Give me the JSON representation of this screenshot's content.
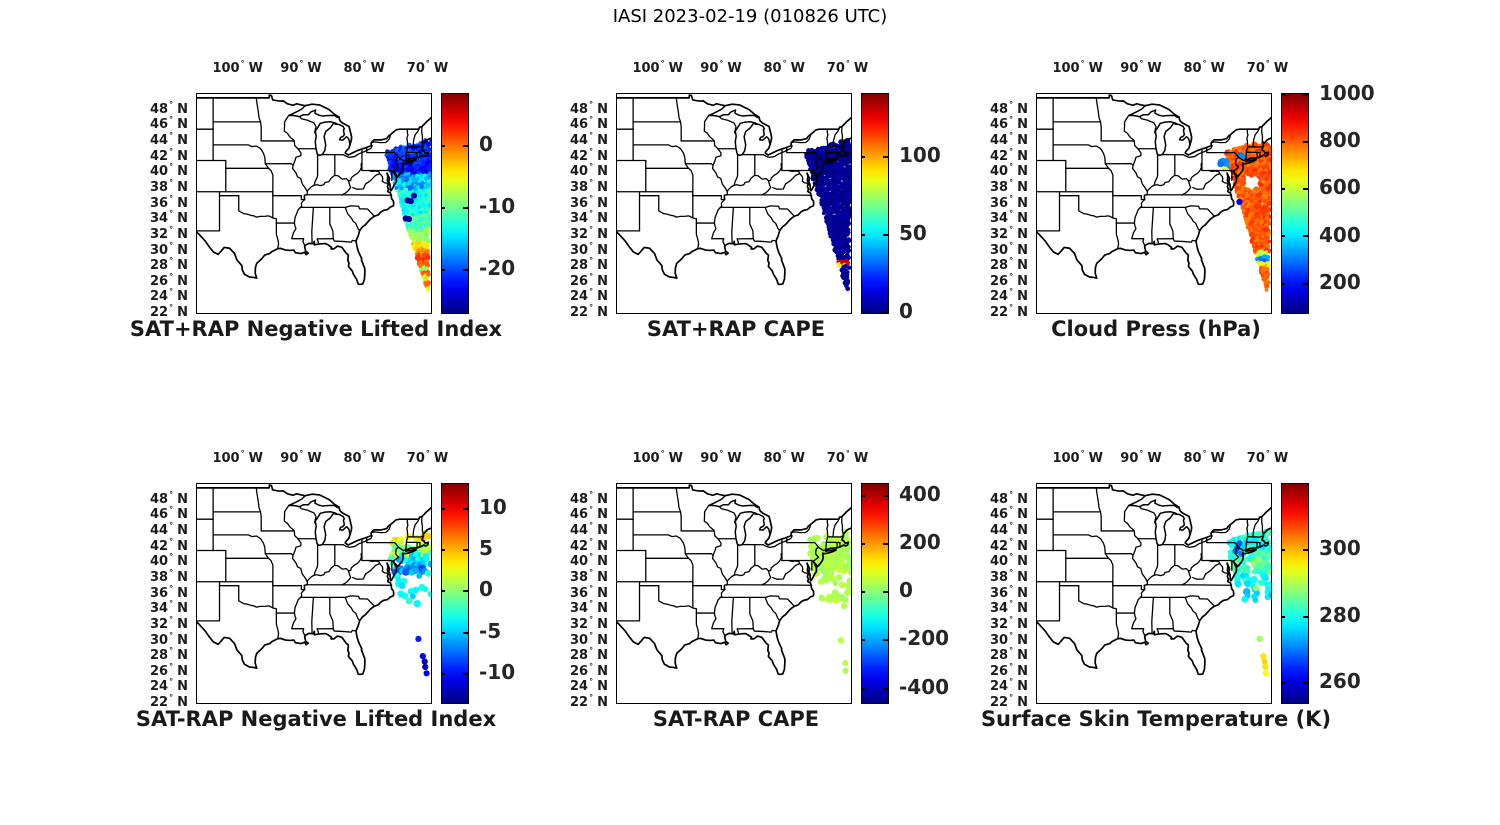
{
  "figure_title": "IASI 2023-02-19 (010826 UTC)",
  "degree_symbol": "°",
  "colors": {
    "background": "#ffffff",
    "outline": "#000000",
    "text": "#1c1c1c"
  },
  "chart_data": {
    "type": "scatter",
    "grid": {
      "rows": 2,
      "cols": 3
    },
    "map_extent": {
      "lon": [
        -106.6,
        -69.6
      ],
      "lat": [
        21.5,
        49.5
      ]
    },
    "lon_ticks": [
      {
        "label": "100",
        "dir": "W",
        "lon": -100
      },
      {
        "label": "90",
        "dir": "W",
        "lon": -90
      },
      {
        "label": "80",
        "dir": "W",
        "lon": -80
      },
      {
        "label": "70",
        "dir": "W",
        "lon": -70
      }
    ],
    "lat_ticks": [
      {
        "label": "48",
        "dir": "N",
        "lat": 48
      },
      {
        "label": "46",
        "dir": "N",
        "lat": 46
      },
      {
        "label": "44",
        "dir": "N",
        "lat": 44
      },
      {
        "label": "42",
        "dir": "N",
        "lat": 42
      },
      {
        "label": "40",
        "dir": "N",
        "lat": 40
      },
      {
        "label": "38",
        "dir": "N",
        "lat": 38
      },
      {
        "label": "36",
        "dir": "N",
        "lat": 36
      },
      {
        "label": "34",
        "dir": "N",
        "lat": 34
      },
      {
        "label": "32",
        "dir": "N",
        "lat": 32
      },
      {
        "label": "30",
        "dir": "N",
        "lat": 30
      },
      {
        "label": "28",
        "dir": "N",
        "lat": 28
      },
      {
        "label": "26",
        "dir": "N",
        "lat": 26
      },
      {
        "label": "24",
        "dir": "N",
        "lat": 24
      },
      {
        "label": "22",
        "dir": "N",
        "lat": 22
      }
    ],
    "swath_geometry": {
      "tip_lon": -70.1,
      "tip_lat": 24.2,
      "top_lat": 43.6,
      "dlon_left": 0.366,
      "dlon_right": 0.039,
      "top_edge": {
        "lat0": 42.2,
        "lon0": -76.8,
        "slope": 0.22
      }
    },
    "panels": [
      {
        "id": "sat-plus-rap-nli",
        "title": "SAT+RAP Negative Lifted Index",
        "colorbar": {
          "vmin": -27,
          "vmax": 8.5,
          "ticks": [
            0,
            -10,
            -20
          ]
        },
        "swath": {
          "bands": [
            {
              "lat": [
                43.6,
                40.6
              ],
              "value": -21,
              "noise": 2.5
            },
            {
              "lat": [
                40.6,
                39.2
              ],
              "value": -22.5,
              "noise": 2
            },
            {
              "lat": [
                39.2,
                37.2
              ],
              "value": -16,
              "noise": 3
            },
            {
              "lat": [
                37.2,
                34.0
              ],
              "value": -13,
              "noise": 2
            },
            {
              "lat": [
                34.0,
                32.2
              ],
              "value": -11.5,
              "noise": 1.5
            },
            {
              "lat": [
                32.2,
                30.4
              ],
              "value": -8,
              "noise": 1.5
            },
            {
              "lat": [
                30.4,
                29.6
              ],
              "value": -4,
              "noise": 1.5
            },
            {
              "lat": [
                29.6,
                28.9
              ],
              "value": -1,
              "noise": 1.5
            },
            {
              "lat": [
                28.9,
                28.1
              ],
              "value": 2.5,
              "noise": 1
            },
            {
              "lat": [
                28.1,
                27.3
              ],
              "value": 1,
              "noise": 1
            },
            {
              "lat": [
                27.3,
                26.8
              ],
              "value": -8,
              "noise": 1
            },
            {
              "lat": [
                26.8,
                26.4
              ],
              "value": 0.5,
              "noise": 1
            },
            {
              "lat": [
                26.4,
                25.9
              ],
              "value": -7,
              "noise": 1
            },
            {
              "lat": [
                25.9,
                25.4
              ],
              "value": -3.5,
              "noise": 1
            },
            {
              "lat": [
                25.4,
                24.9
              ],
              "value": 0.5,
              "noise": 1
            },
            {
              "lat": [
                24.9,
                24.2
              ],
              "value": -6,
              "noise": 1
            }
          ]
        },
        "dots": [
          [
            -73.3,
            35.9,
            -26
          ],
          [
            -72.8,
            35.8,
            -26
          ],
          [
            -72.3,
            36.5,
            -25
          ],
          [
            -73.6,
            33.6,
            -26
          ],
          [
            -73.1,
            33.5,
            -26
          ]
        ]
      },
      {
        "id": "sat-plus-rap-cape",
        "title": "SAT+RAP CAPE",
        "colorbar": {
          "vmin": 0,
          "vmax": 140,
          "ticks": [
            100,
            50,
            0
          ]
        },
        "swath": {
          "bands": [
            {
              "lat": [
                43.6,
                28.2
              ],
              "value": 3,
              "noise": 3
            },
            {
              "lat": [
                28.2,
                27.8
              ],
              "value": 128,
              "noise": 6
            },
            {
              "lat": [
                27.8,
                27.5
              ],
              "value": 90,
              "noise": 8
            },
            {
              "lat": [
                27.5,
                24.2
              ],
              "value": 3,
              "noise": 3
            }
          ]
        },
        "dots": []
      },
      {
        "id": "cloud-press",
        "title": "Cloud Press (hPa)",
        "colorbar": {
          "vmin": 75,
          "vmax": 1005,
          "ticks": [
            1000,
            800,
            600,
            400,
            200
          ]
        },
        "swath": {
          "bands": [
            {
              "lat": [
                43.2,
                29.3
              ],
              "value": 810,
              "noise": 45
            },
            {
              "lat": [
                29.3,
                28.7
              ],
              "value": 600,
              "noise": 60
            },
            {
              "lat": [
                28.7,
                28.0
              ],
              "value": 320,
              "noise": 40
            },
            {
              "lat": [
                28.0,
                27.4
              ],
              "value": 680,
              "noise": 60
            },
            {
              "lat": [
                27.4,
                24.2
              ],
              "value": 800,
              "noise": 40
            }
          ],
          "holes": [
            {
              "lat": [
                37.4,
                38.9
              ],
              "lon": [
                -73.9,
                -71.4
              ]
            }
          ]
        },
        "dots": [
          [
            -77.5,
            40.85,
            300
          ],
          [
            -77.2,
            40.95,
            310
          ],
          [
            -77.35,
            40.6,
            285
          ],
          [
            -77.0,
            40.75,
            300
          ],
          [
            -76.75,
            40.9,
            320
          ],
          [
            -77.6,
            40.55,
            295
          ],
          [
            -76.55,
            40.3,
            330
          ],
          [
            -74.5,
            41.65,
            300
          ],
          [
            -74.15,
            41.5,
            315
          ],
          [
            -76.85,
            39.85,
            640
          ],
          [
            -74.6,
            35.7,
            180
          ]
        ]
      },
      {
        "id": "sat-minus-rap-nli",
        "title": "SAT-RAP Negative Lifted Index",
        "colorbar": {
          "vmin": -13.5,
          "vmax": 13,
          "ticks": [
            10,
            5,
            0,
            -5,
            -10
          ]
        },
        "cluster": {
          "lon_min": -75.9,
          "bands": [
            {
              "lat": [
                43.4,
                41.6
              ],
              "value": 3,
              "noise": 2,
              "density": 0.55
            },
            {
              "lat": [
                41.6,
                40.4
              ],
              "value": 0.5,
              "noise": 2.5,
              "density": 0.75
            },
            {
              "lat": [
                40.4,
                39.3
              ],
              "value": -4,
              "noise": 2.5,
              "density": 0.75
            },
            {
              "lat": [
                39.3,
                38.1
              ],
              "value": -6.5,
              "noise": 2,
              "density": 0.6
            },
            {
              "lat": [
                38.1,
                36.3
              ],
              "value": -4,
              "noise": 1.5,
              "density": 0.3
            },
            {
              "lat": [
                36.3,
                34.2
              ],
              "value": -3.5,
              "noise": 1.5,
              "density": 0.25
            }
          ]
        },
        "dots": [
          [
            -71.6,
            29.7,
            -9.5
          ],
          [
            -70.9,
            27.5,
            -11
          ],
          [
            -70.6,
            26.8,
            -12
          ],
          [
            -70.5,
            26.1,
            -11.5
          ],
          [
            -70.3,
            25.3,
            -10.5
          ],
          [
            -75.1,
            40.5,
            2
          ]
        ]
      },
      {
        "id": "sat-minus-rap-cape",
        "title": "SAT-RAP CAPE",
        "colorbar": {
          "vmin": -460,
          "vmax": 450,
          "ticks": [
            400,
            200,
            0,
            -200,
            -400
          ]
        },
        "cluster": {
          "lon_min": -75.9,
          "bands": [
            {
              "lat": [
                43.4,
                41.6
              ],
              "value": 40,
              "noise": 20,
              "density": 0.6
            },
            {
              "lat": [
                41.6,
                38.3
              ],
              "value": 40,
              "noise": 20,
              "density": 0.85
            },
            {
              "lat": [
                38.3,
                36.2
              ],
              "value": 40,
              "noise": 20,
              "density": 0.35
            },
            {
              "lat": [
                36.2,
                34.0
              ],
              "value": 40,
              "noise": 20,
              "density": 0.25
            }
          ]
        },
        "dots": [
          [
            -74.9,
            42.6,
            40
          ],
          [
            -75.6,
            39.4,
            40
          ],
          [
            -71.2,
            29.5,
            45
          ],
          [
            -70.5,
            26.6,
            40
          ],
          [
            -70.45,
            25.6,
            40
          ],
          [
            -70.2,
            35.6,
            40
          ],
          [
            -70.7,
            33.9,
            40
          ]
        ]
      },
      {
        "id": "surface-skin-temp",
        "title": "Surface Skin Temperature (K)",
        "colorbar": {
          "vmin": 254,
          "vmax": 320,
          "ticks": [
            300,
            280,
            260
          ]
        },
        "cluster": {
          "lon_min": -75.9,
          "bands": [
            {
              "lat": [
                43.5,
                42.4
              ],
              "value": 281,
              "noise": 3,
              "density": 0.7
            },
            {
              "lat": [
                42.4,
                41.0
              ],
              "value": 280,
              "noise": 4,
              "density": 0.8
            },
            {
              "lat": [
                41.0,
                39.6
              ],
              "value": 283,
              "noise": 4,
              "density": 0.8
            },
            {
              "lat": [
                39.6,
                38.2
              ],
              "value": 284,
              "noise": 3,
              "density": 0.6
            },
            {
              "lat": [
                38.2,
                36.2
              ],
              "value": 279,
              "noise": 3,
              "density": 0.35
            },
            {
              "lat": [
                36.2,
                34.2
              ],
              "value": 276,
              "noise": 3,
              "density": 0.3
            }
          ]
        },
        "dots": [
          [
            -74.6,
            41.9,
            268
          ],
          [
            -74.95,
            41.3,
            267
          ],
          [
            -74.3,
            40.6,
            270
          ],
          [
            -75.2,
            40.9,
            268
          ],
          [
            -72.4,
            39.4,
            289
          ],
          [
            -71.4,
            39.8,
            288
          ],
          [
            -72.0,
            36.2,
            288
          ],
          [
            -71.4,
            29.7,
            289
          ],
          [
            -70.8,
            27.5,
            297
          ],
          [
            -70.6,
            26.8,
            298
          ],
          [
            -70.5,
            26.1,
            297
          ],
          [
            -70.4,
            25.3,
            295
          ]
        ]
      }
    ]
  }
}
